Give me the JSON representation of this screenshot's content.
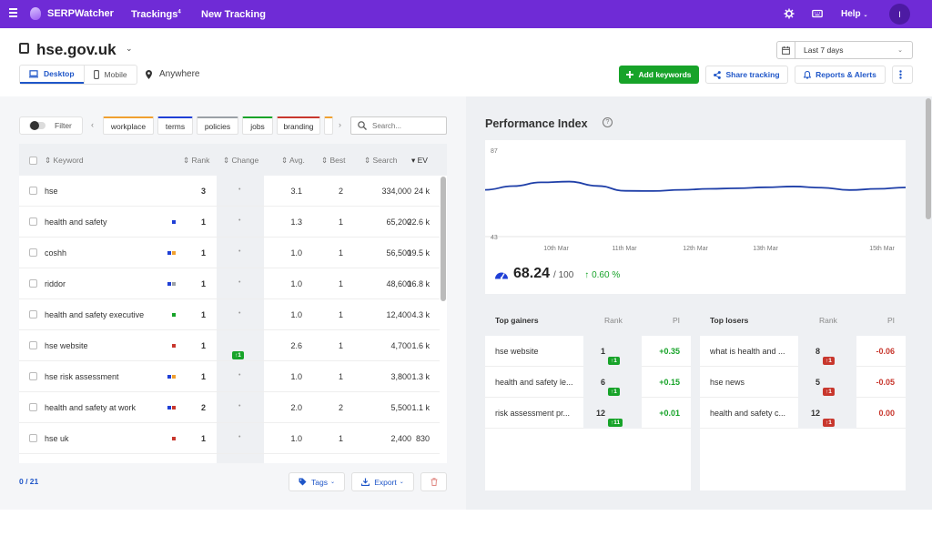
{
  "nav": {
    "brand": "SERPWatcher",
    "trackings": "Trackings",
    "trackings_sup": "4",
    "new_tracking": "New Tracking",
    "help": "Help",
    "avatar_initial": "I",
    "accent": "#6f2bd6"
  },
  "header": {
    "site": "hse.gov.uk",
    "device_desktop": "Desktop",
    "device_mobile": "Mobile",
    "location": "Anywhere",
    "date_range": "Last 7 days",
    "add_keywords": "Add keywords",
    "share_tracking": "Share tracking",
    "reports_alerts": "Reports & Alerts"
  },
  "filter": {
    "label": "Filter",
    "tags": [
      "workplace",
      "terms",
      "policies",
      "jobs",
      "branding"
    ],
    "search_placeholder": "Search..."
  },
  "table": {
    "columns": [
      "Keyword",
      "Rank",
      "Change",
      "Avg.",
      "Best",
      "Search",
      "EV"
    ],
    "rows": [
      {
        "keyword": "hse",
        "rank": "3",
        "change": "•",
        "avg": "3.1",
        "best": "2",
        "search": "334,000",
        "ev": "24 k",
        "flags": []
      },
      {
        "keyword": "health and safety",
        "rank": "1",
        "change": "•",
        "avg": "1.3",
        "best": "1",
        "search": "65,200",
        "ev": "22.6 k",
        "flags": [
          "#1f3fd6"
        ]
      },
      {
        "keyword": "coshh",
        "rank": "1",
        "change": "•",
        "avg": "1.0",
        "best": "1",
        "search": "56,500",
        "ev": "19.5 k",
        "flags": [
          "#1f3fd6",
          "#f0a030"
        ]
      },
      {
        "keyword": "riddor",
        "rank": "1",
        "change": "•",
        "avg": "1.0",
        "best": "1",
        "search": "48,600",
        "ev": "16.8 k",
        "flags": [
          "#1f3fd6",
          "#9aa0a6"
        ]
      },
      {
        "keyword": "health and safety executive",
        "rank": "1",
        "change": "•",
        "avg": "1.0",
        "best": "1",
        "search": "12,400",
        "ev": "4.3 k",
        "flags": [
          "#17a329"
        ]
      },
      {
        "keyword": "hse website",
        "rank": "1",
        "change": "↑1",
        "avg": "2.6",
        "best": "1",
        "search": "4,700",
        "ev": "1.6 k",
        "flags": [
          "#c8372d"
        ]
      },
      {
        "keyword": "hse risk assessment",
        "rank": "1",
        "change": "•",
        "avg": "1.0",
        "best": "1",
        "search": "3,800",
        "ev": "1.3 k",
        "flags": [
          "#1f3fd6",
          "#f0a030"
        ]
      },
      {
        "keyword": "health and safety at work",
        "rank": "2",
        "change": "•",
        "avg": "2.0",
        "best": "2",
        "search": "5,500",
        "ev": "1.1 k",
        "flags": [
          "#1f3fd6",
          "#c8372d"
        ]
      },
      {
        "keyword": "hse uk",
        "rank": "1",
        "change": "•",
        "avg": "1.0",
        "best": "1",
        "search": "2,400",
        "ev": "830",
        "flags": [
          "#c8372d"
        ]
      }
    ],
    "counter": "0 / 21",
    "tags_btn": "Tags",
    "export_btn": "Export"
  },
  "performance": {
    "title": "Performance Index",
    "value": "68.24",
    "out_of": "/ 100",
    "delta": "0.60 %",
    "chart_data": {
      "type": "line",
      "ylim": [
        43,
        87
      ],
      "y_ticks": [
        "87",
        "43"
      ],
      "x_labels": [
        "10th Mar",
        "11th Mar",
        "12th Mar",
        "13th Mar",
        "15th Mar"
      ],
      "values": [
        66.8,
        68.7,
        70.6,
        71.0,
        68.8,
        66.3,
        66.2,
        66.8,
        67.3,
        67.6,
        68.1,
        68.5,
        67.9,
        66.7,
        67.3,
        68.0
      ]
    }
  },
  "gainers": {
    "title": "Top gainers",
    "rank_col": "Rank",
    "pi_col": "PI",
    "rows": [
      {
        "keyword": "hse website",
        "rank": "1",
        "badge": "↑1",
        "pi": "+0.35"
      },
      {
        "keyword": "health and safety le...",
        "rank": "6",
        "badge": "↑1",
        "pi": "+0.15"
      },
      {
        "keyword": "risk assessment pr...",
        "rank": "12",
        "badge": "↑11",
        "pi": "+0.01"
      }
    ]
  },
  "losers": {
    "title": "Top losers",
    "rank_col": "Rank",
    "pi_col": "PI",
    "rows": [
      {
        "keyword": "what is health and ...",
        "rank": "8",
        "badge": "↑1",
        "pi": "-0.06"
      },
      {
        "keyword": "hse news",
        "rank": "5",
        "badge": "↑1",
        "pi": "-0.05"
      },
      {
        "keyword": "health and safety c...",
        "rank": "12",
        "badge": "↑1",
        "pi": "0.00"
      }
    ]
  }
}
